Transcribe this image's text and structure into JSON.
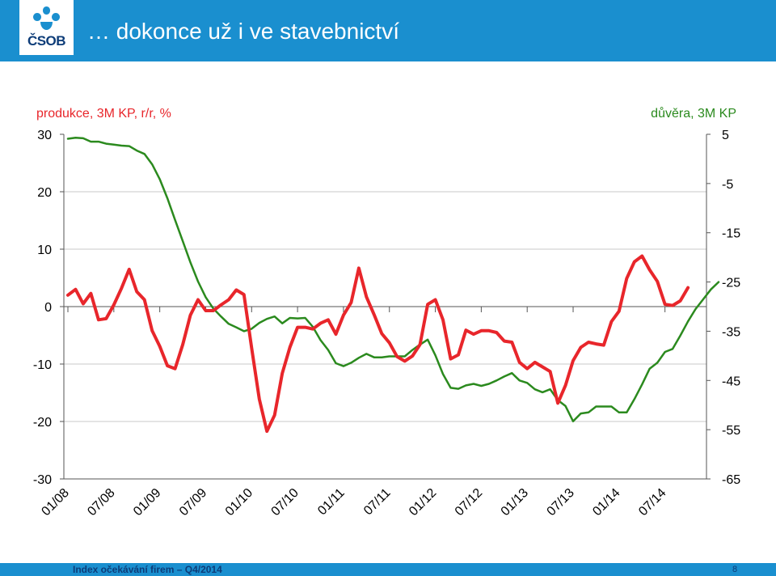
{
  "header": {
    "title": "… dokonce už i ve stavebnictví",
    "logo_text": "ČSOB",
    "bar_color": "#1a8fcf"
  },
  "footer": {
    "text": "Index očekávání firem – Q4/2014",
    "page_number": "8"
  },
  "chart_data": {
    "type": "line",
    "left_axis": {
      "label": "produkce, 3M KP, r/r, %",
      "ylim": [
        -30,
        30
      ],
      "ticks": [
        "30",
        "20",
        "10",
        "0",
        "-10",
        "-20",
        "-30"
      ]
    },
    "right_axis": {
      "label": "důvěra, 3M KP",
      "ylim": [
        -65,
        5
      ],
      "ticks": [
        "5",
        "-5",
        "-15",
        "-25",
        "-35",
        "-45",
        "-55",
        "-65"
      ]
    },
    "x_tick_labels": [
      "01/08",
      "07/08",
      "01/09",
      "07/09",
      "01/10",
      "07/10",
      "01/11",
      "07/11",
      "01/12",
      "07/12",
      "01/13",
      "07/13",
      "01/14",
      "07/14"
    ],
    "grid": true,
    "series": [
      {
        "axis": "left",
        "color": "#e8262b",
        "start": "01/08",
        "values": [
          2,
          3,
          0.5,
          2.3,
          -2.3,
          -2.1,
          0.3,
          3.2,
          6.5,
          2.6,
          1.2,
          -4.2,
          -6.9,
          -10.3,
          -10.8,
          -6.6,
          -1.5,
          1.2,
          -0.7,
          -0.7,
          0.3,
          1.2,
          2.9,
          2.1,
          -7.2,
          -16.1,
          -21.7,
          -18.9,
          -11.6,
          -7.1,
          -3.6,
          -3.6,
          -3.9,
          -2.9,
          -2.3,
          -4.8,
          -1.5,
          0.7,
          6.7,
          1.7,
          -1.4,
          -4.7,
          -6.3,
          -8.7,
          -9.5,
          -8.6,
          -6.6,
          0.4,
          1.2,
          -2.3,
          -9.1,
          -8.4,
          -4.1,
          -4.8,
          -4.2,
          -4.2,
          -4.5,
          -6,
          -6.2,
          -9.7,
          -10.8,
          -9.7,
          -10.5,
          -11.3,
          -16.8,
          -13.7,
          -9.4,
          -7.1,
          -6.2,
          -6.5,
          -6.7,
          -2.6,
          -0.8,
          4.9,
          7.8,
          8.8,
          6.4,
          4.4,
          0.4,
          0.2,
          1,
          3.3
        ]
      },
      {
        "axis": "right",
        "color": "#2b8a1e",
        "start": "01/08",
        "values": [
          4.1,
          4.3,
          4.2,
          3.5,
          3.5,
          3.1,
          2.9,
          2.7,
          2.6,
          1.7,
          1,
          -1.1,
          -4.1,
          -8,
          -12.4,
          -16.7,
          -21,
          -24.9,
          -28.1,
          -30.4,
          -32,
          -33.5,
          -34.2,
          -35,
          -34.5,
          -33.3,
          -32.5,
          -32,
          -33.4,
          -32.3,
          -32.4,
          -32.3,
          -34.1,
          -36.8,
          -38.8,
          -41.5,
          -42.1,
          -41.4,
          -40.4,
          -39.6,
          -40.3,
          -40.3,
          -40.1,
          -40.1,
          -40.1,
          -38.8,
          -37.7,
          -36.7,
          -39.9,
          -43.7,
          -46.5,
          -46.7,
          -46,
          -45.7,
          -46.1,
          -45.7,
          -45,
          -44.2,
          -43.5,
          -45,
          -45.5,
          -46.8,
          -47.4,
          -46.8,
          -49,
          -50.2,
          -53.3,
          -51.7,
          -51.5,
          -50.3,
          -50.3,
          -50.3,
          -51.5,
          -51.5,
          -48.8,
          -45.8,
          -42.6,
          -41.4,
          -39.2,
          -38.6,
          -35.9,
          -33,
          -30.5,
          -28.5,
          -26.5,
          -25
        ]
      }
    ]
  }
}
